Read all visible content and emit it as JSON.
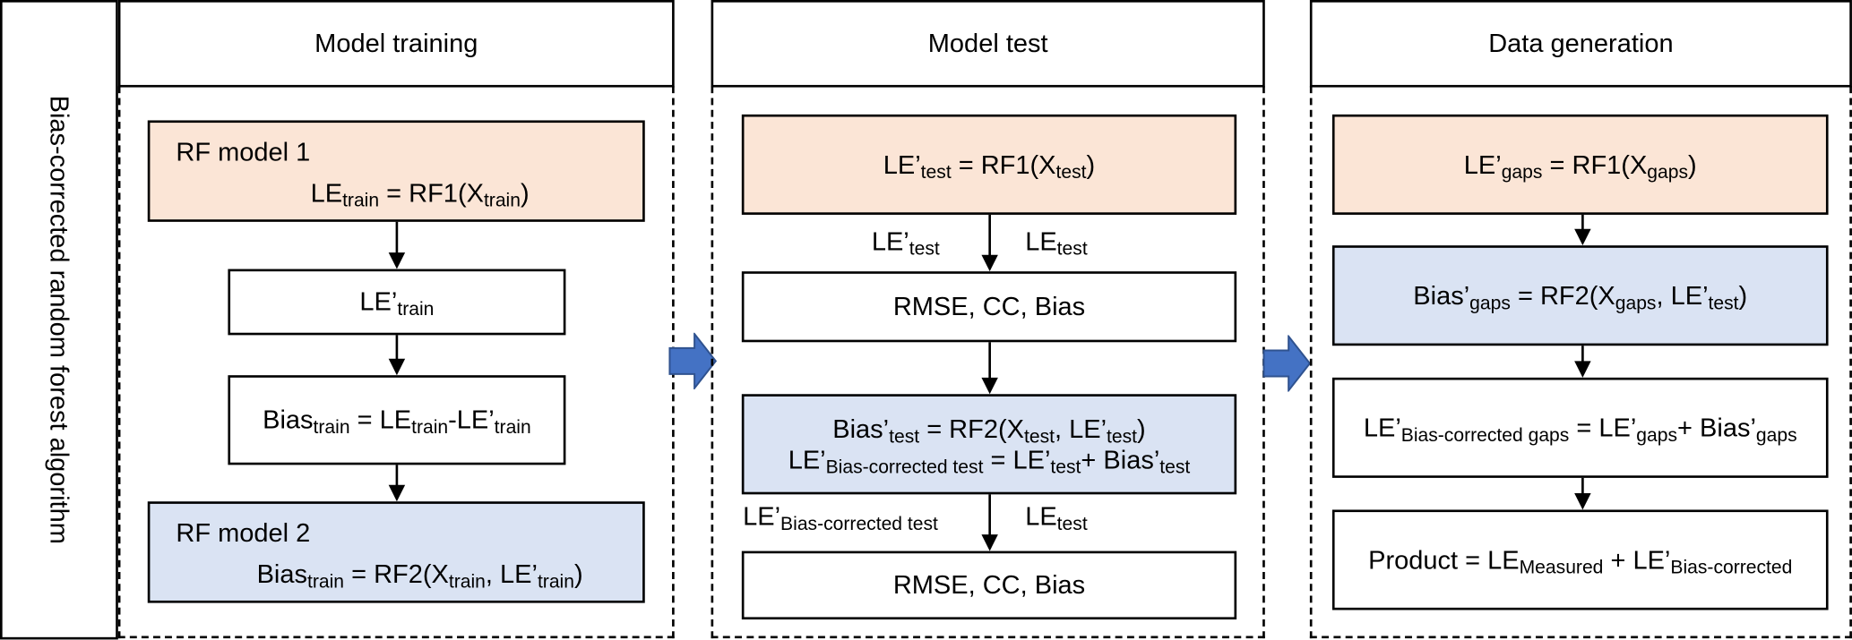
{
  "side_label": "Bias-corrected random forest algorithm",
  "colors": {
    "rf1_box": "#fbe5d6",
    "rf2_box": "#dae3f3",
    "stage_arrow": "#4472c4"
  },
  "panels": [
    {
      "title": "Model training",
      "rf1_title": "RF model 1",
      "rf1_formula": [
        [
          "LE",
          ""
        ],
        [
          "",
          "train"
        ],
        [
          " = RF1(X",
          ""
        ],
        [
          "",
          "train"
        ],
        [
          ")",
          ""
        ]
      ],
      "step2": [
        [
          "LE’",
          ""
        ],
        [
          "",
          "train"
        ]
      ],
      "step3": [
        [
          "Bias",
          ""
        ],
        [
          "",
          "train"
        ],
        [
          " = LE",
          ""
        ],
        [
          "",
          "train"
        ],
        [
          "-LE’",
          ""
        ],
        [
          "",
          "train"
        ]
      ],
      "rf2_title": "RF model 2",
      "rf2_formula": [
        [
          "Bias",
          ""
        ],
        [
          "",
          "train"
        ],
        [
          " = RF2(X",
          ""
        ],
        [
          "",
          "train"
        ],
        [
          ", LE’",
          ""
        ],
        [
          "",
          "train"
        ],
        [
          ")",
          ""
        ]
      ]
    },
    {
      "title": "Model test",
      "rf1_formula": [
        [
          "LE’",
          ""
        ],
        [
          "",
          "test"
        ],
        [
          " = RF1(X",
          ""
        ],
        [
          "",
          "test"
        ],
        [
          ")",
          ""
        ]
      ],
      "arrow1_left": [
        [
          "LE’",
          ""
        ],
        [
          "",
          "test"
        ]
      ],
      "arrow1_right": [
        [
          "LE",
          ""
        ],
        [
          "",
          "test"
        ]
      ],
      "metrics1": "RMSE, CC, Bias",
      "rf2_line1": [
        [
          "Bias’",
          ""
        ],
        [
          "",
          "test"
        ],
        [
          " = RF2(X",
          ""
        ],
        [
          "",
          "test"
        ],
        [
          ", LE’",
          ""
        ],
        [
          "",
          "test"
        ],
        [
          ")",
          ""
        ]
      ],
      "rf2_line2": [
        [
          "LE’",
          ""
        ],
        [
          "",
          "Bias-corrected test"
        ],
        [
          " = LE’",
          ""
        ],
        [
          "",
          "test"
        ],
        [
          "+ Bias’",
          ""
        ],
        [
          "",
          "test"
        ]
      ],
      "arrow2_left": [
        [
          "LE’",
          ""
        ],
        [
          "",
          "Bias-corrected test"
        ]
      ],
      "arrow2_right": [
        [
          "LE",
          ""
        ],
        [
          "",
          "test"
        ]
      ],
      "metrics2": "RMSE, CC, Bias"
    },
    {
      "title": "Data generation",
      "rf1_formula": [
        [
          "LE’",
          ""
        ],
        [
          "",
          "gaps"
        ],
        [
          " = RF1(X",
          ""
        ],
        [
          "",
          "gaps"
        ],
        [
          ")",
          ""
        ]
      ],
      "rf2_formula": [
        [
          "Bias’",
          ""
        ],
        [
          "",
          "gaps"
        ],
        [
          " = RF2(X",
          ""
        ],
        [
          "",
          "gaps"
        ],
        [
          ", LE’",
          ""
        ],
        [
          "",
          "test"
        ],
        [
          ")",
          ""
        ]
      ],
      "corrected": [
        [
          "LE’",
          ""
        ],
        [
          "",
          "Bias-corrected gaps"
        ],
        [
          " = LE’",
          ""
        ],
        [
          "",
          "gaps"
        ],
        [
          "+ Bias’",
          ""
        ],
        [
          "",
          "gaps"
        ]
      ],
      "product": [
        [
          "Product = LE",
          ""
        ],
        [
          "",
          "Measured"
        ],
        [
          " + LE’",
          ""
        ],
        [
          "",
          "Bias-corrected"
        ]
      ]
    }
  ]
}
